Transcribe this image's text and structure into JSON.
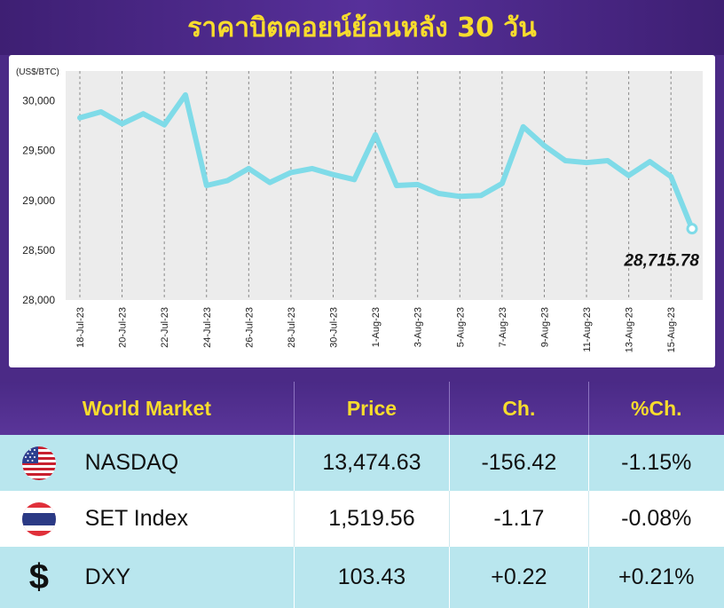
{
  "title": "ราคาบิตคอยน์ย้อนหลัง 30 วัน",
  "chart_data": {
    "type": "line",
    "ylabel": "(US$/BTC)",
    "ylim": [
      28000,
      30300
    ],
    "yticks": [
      "30,000",
      "29,500",
      "29,000",
      "28,500",
      "28,000"
    ],
    "ytick_values": [
      30000,
      29500,
      29000,
      28500,
      28000
    ],
    "xtick_labels": [
      "18-Jul-23",
      "20-Jul-23",
      "22-Jul-23",
      "24-Jul-23",
      "26-Jul-23",
      "28-Jul-23",
      "30-Jul-23",
      "1-Aug-23",
      "3-Aug-23",
      "5-Aug-23",
      "7-Aug-23",
      "9-Aug-23",
      "11-Aug-23",
      "13-Aug-23",
      "15-Aug-23"
    ],
    "grid": "vertical dashed",
    "line_color": "#67cfe0",
    "series": [
      {
        "values": [
          29830,
          29890,
          29770,
          29870,
          29760,
          30060,
          29150,
          29200,
          29320,
          29180,
          29280,
          29320,
          29260,
          29210,
          29660,
          29150,
          29160,
          29070,
          29040,
          29050,
          29170,
          29740,
          29550,
          29400,
          29380,
          29400,
          29250,
          29390,
          29240,
          28716
        ]
      }
    ],
    "last_value_label": "28,715.78"
  },
  "table": {
    "headers": [
      "World Market",
      "Price",
      "Ch.",
      "%Ch."
    ],
    "rows": [
      {
        "flag": "us-flag-icon",
        "name": "NASDAQ",
        "price": "13,474.63",
        "ch": "-156.42",
        "pct": "-1.15%"
      },
      {
        "flag": "thai-flag-icon",
        "name": "SET Index",
        "price": "1,519.56",
        "ch": "-1.17",
        "pct": "-0.08%"
      },
      {
        "flag": "dollar-icon",
        "symbol": "$",
        "name": "DXY",
        "price": "103.43",
        "ch": "+0.22",
        "pct": "+0.21%"
      }
    ]
  }
}
